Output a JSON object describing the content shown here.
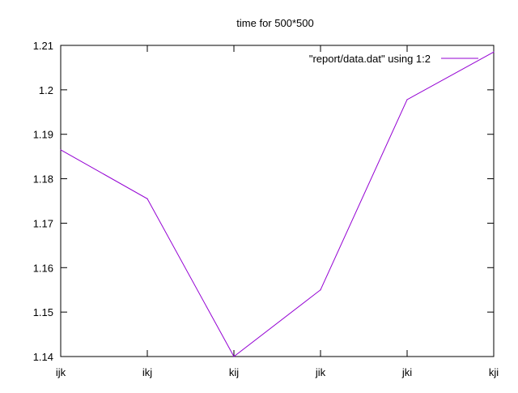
{
  "chart_data": {
    "type": "line",
    "title": "time for 500*500",
    "xlabel": "",
    "ylabel": "",
    "categories": [
      "ijk",
      "ikj",
      "kij",
      "jik",
      "jki",
      "kji"
    ],
    "series": [
      {
        "name": "\"report/data.dat\" using 1:2",
        "color": "#9400d3",
        "values": [
          1.1865,
          1.1755,
          1.14,
          1.155,
          1.1978,
          1.2085
        ]
      }
    ],
    "ylim": [
      1.14,
      1.21
    ],
    "yticks": [
      "1.14",
      "1.15",
      "1.16",
      "1.17",
      "1.18",
      "1.19",
      "1.2",
      "1.21"
    ],
    "grid": false,
    "legend_position": "top-right"
  }
}
